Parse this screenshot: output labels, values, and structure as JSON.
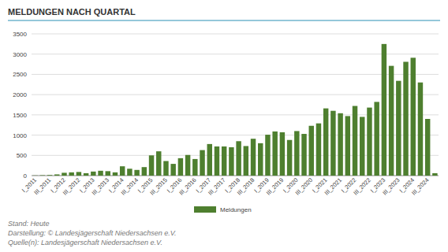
{
  "chart_data": {
    "type": "bar",
    "title": "MELDUNGEN NACH QUARTAL",
    "categories": [
      "I_2011",
      null,
      "III_2011",
      null,
      "I_2012",
      null,
      "III_2012",
      null,
      "I_2013",
      null,
      "III_2013",
      null,
      "I_2014",
      null,
      "III_2014",
      null,
      "I_2015",
      null,
      "III_2015",
      null,
      "I_2016",
      null,
      "III_2016",
      null,
      "I_2017",
      null,
      "III_2017",
      null,
      "I_2018",
      null,
      "III_2018",
      null,
      "I_2019",
      null,
      "III_2019",
      null,
      "I_2020",
      null,
      "III_2020",
      null,
      "I_2021",
      null,
      "III_2021",
      null,
      "I_2022",
      null,
      "III_2022",
      null,
      "I_2023",
      null,
      "III_2023",
      null,
      "I_2024",
      null,
      "III_2024",
      null
    ],
    "series": [
      {
        "name": "Meldungen",
        "color": "#4e7f2f",
        "values": [
          5,
          10,
          15,
          30,
          70,
          80,
          90,
          60,
          100,
          120,
          110,
          80,
          230,
          170,
          140,
          210,
          500,
          600,
          360,
          290,
          430,
          510,
          410,
          630,
          780,
          720,
          720,
          700,
          850,
          730,
          910,
          800,
          1010,
          1090,
          1070,
          880,
          1100,
          1030,
          1230,
          1290,
          1660,
          1600,
          1540,
          1470,
          1720,
          1450,
          1680,
          1820,
          3250,
          2710,
          2340,
          2810,
          2910,
          2300,
          1400,
          60
        ]
      }
    ],
    "ylim": [
      0,
      3500
    ],
    "yticks": [
      0,
      500,
      1000,
      1500,
      2000,
      2500,
      3000,
      3500
    ],
    "grid": true,
    "legend": "bottom",
    "footer": [
      "Stand: Heute",
      "Darstellung: © Landesjägerschaft Niedersachsen e.V.",
      "Quelle(n): Landesjägerschaft Niedersachsen e.V."
    ]
  }
}
